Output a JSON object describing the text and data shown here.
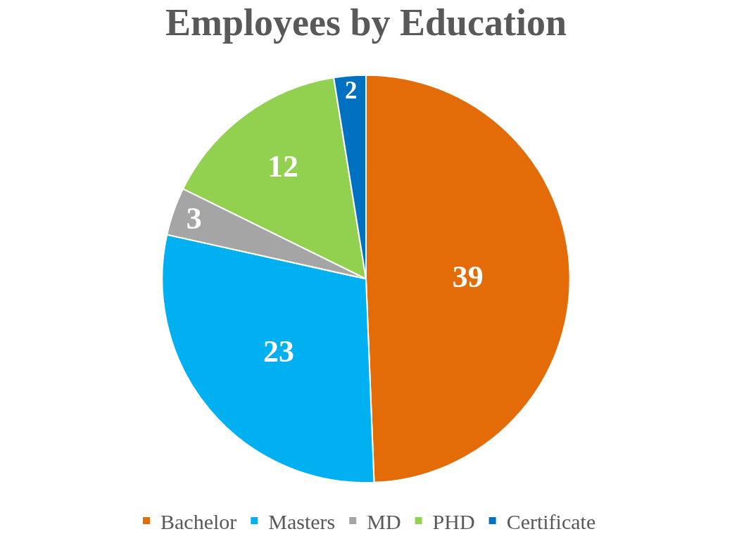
{
  "chart_data": {
    "type": "pie",
    "title": "Employees by Education",
    "categories": [
      "Bachelor",
      "Masters",
      "MD",
      "PHD",
      "Certificate"
    ],
    "values": [
      39,
      23,
      3,
      12,
      2
    ],
    "colors": [
      "#e36c09",
      "#00b0f0",
      "#a5a5a5",
      "#92d050",
      "#0070c0"
    ],
    "data_labels": true,
    "legend": "bottom"
  }
}
